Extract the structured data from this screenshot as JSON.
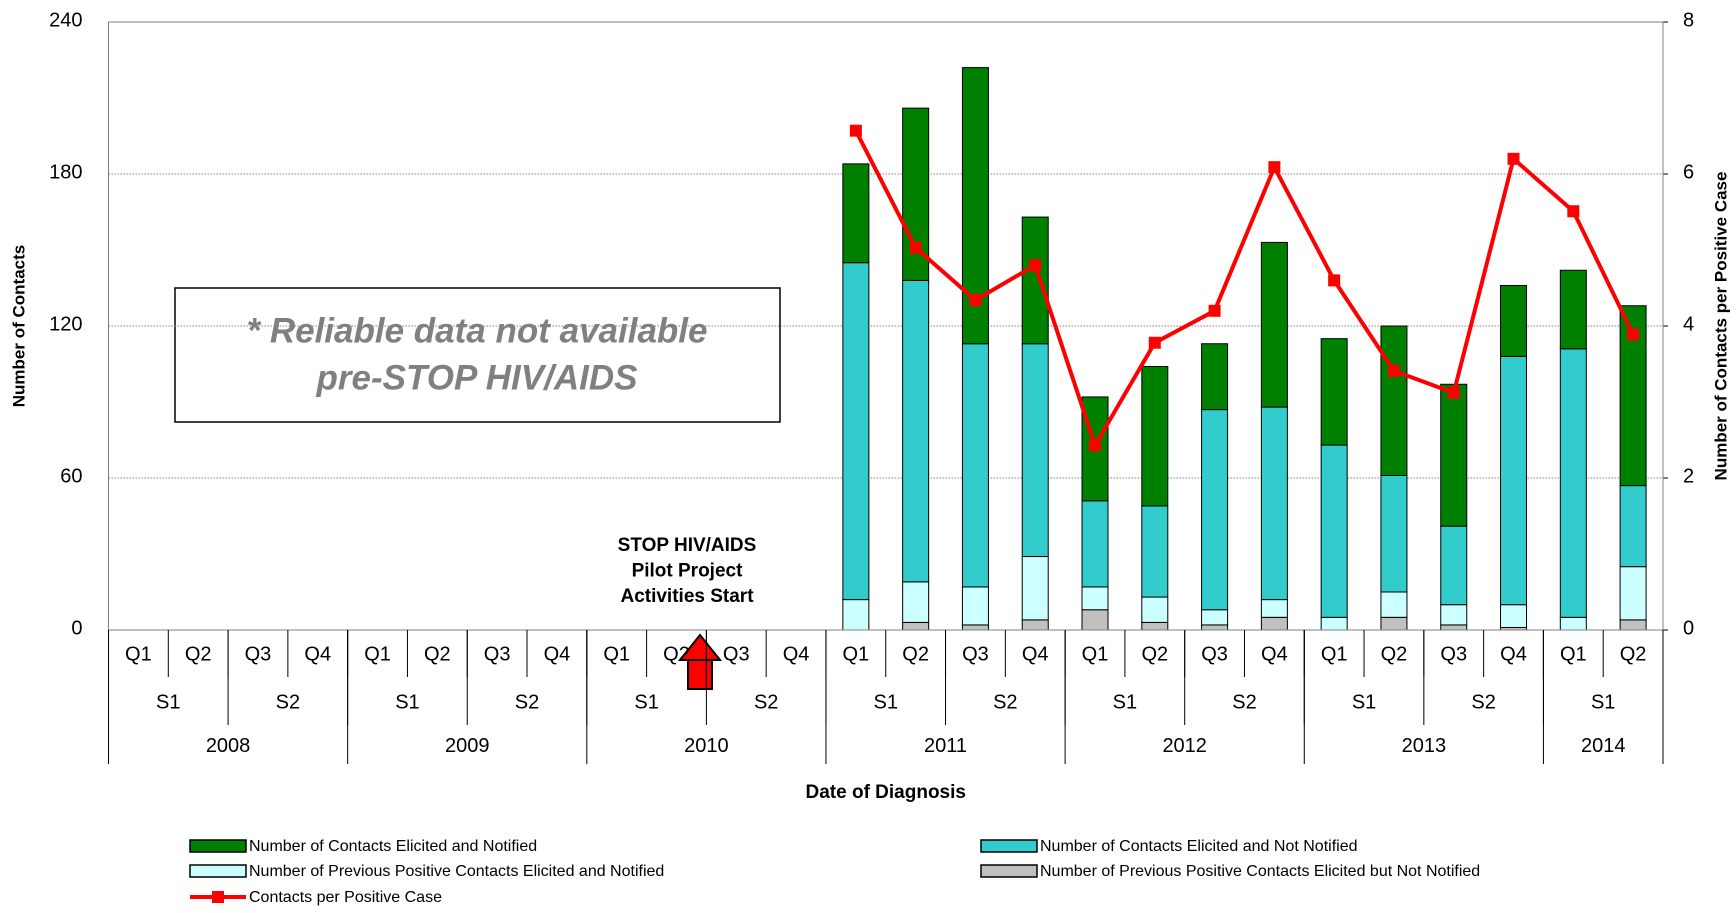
{
  "chart_data": {
    "type": "bar",
    "stacked": true,
    "x_label": "Date of Diagnosis",
    "y_label": "Number of Contacts",
    "y2_label": "Number of Contacts per Positive Case",
    "categories": [
      "Q1",
      "Q2",
      "Q3",
      "Q4",
      "Q1",
      "Q2",
      "Q3",
      "Q4",
      "Q1",
      "Q2",
      "Q3",
      "Q4",
      "Q1",
      "Q2",
      "Q3",
      "Q4",
      "Q1",
      "Q2",
      "Q3",
      "Q4",
      "Q1",
      "Q2",
      "Q3",
      "Q4",
      "Q1",
      "Q2"
    ],
    "category_levels": [
      [
        "S1",
        null,
        "S2",
        null,
        "S1",
        null,
        "S2",
        null,
        "S1",
        null,
        "S2",
        null,
        "S1",
        null,
        "S2",
        null,
        "S1",
        null,
        "S2",
        null,
        "S1",
        null,
        "S2",
        null,
        "S1",
        null
      ],
      [
        "2008",
        null,
        null,
        null,
        "2009",
        null,
        null,
        null,
        "2010",
        null,
        null,
        null,
        "2011",
        null,
        null,
        null,
        "2012",
        null,
        null,
        null,
        "2013",
        null,
        null,
        null,
        "2014",
        null
      ]
    ],
    "ylim": [
      0,
      240
    ],
    "yticks": [
      0,
      60,
      120,
      180,
      240
    ],
    "y2lim": [
      0,
      8
    ],
    "y2ticks": [
      0,
      2,
      4,
      6,
      8
    ],
    "grid": true,
    "series": [
      {
        "name": "Number of Contacts Elicited and Notified",
        "color": "#008000",
        "values": [
          null,
          null,
          null,
          null,
          null,
          null,
          null,
          null,
          null,
          null,
          null,
          null,
          39,
          68,
          109,
          50,
          41,
          55,
          26,
          65,
          42,
          59,
          56,
          28,
          31,
          71
        ]
      },
      {
        "name": "Number of Contacts Elicited and Not Notified",
        "color": "#33cccc",
        "values": [
          null,
          null,
          null,
          null,
          null,
          null,
          null,
          null,
          null,
          null,
          null,
          null,
          133,
          119,
          96,
          84,
          34,
          36,
          79,
          76,
          68,
          46,
          31,
          98,
          106,
          32
        ]
      },
      {
        "name": "Number of Previous Positive Contacts Elicited and Notified",
        "color": "#ccffff",
        "values": [
          null,
          null,
          null,
          null,
          null,
          null,
          null,
          null,
          null,
          null,
          null,
          null,
          12,
          16,
          15,
          25,
          9,
          10,
          6,
          7,
          5,
          10,
          8,
          9,
          5,
          21
        ]
      },
      {
        "name": "Number of Previous Positive Contacts Elicited but Not Notified",
        "color": "#c0c0c0",
        "values": [
          null,
          null,
          null,
          null,
          null,
          null,
          null,
          null,
          null,
          null,
          null,
          null,
          0,
          3,
          2,
          4,
          8,
          3,
          2,
          5,
          0,
          5,
          2,
          1,
          0,
          4
        ]
      },
      {
        "name": "Contacts per Positive Case",
        "color": "#ff0000",
        "type": "line",
        "axis": "y2",
        "values": [
          null,
          null,
          null,
          null,
          null,
          null,
          null,
          null,
          null,
          null,
          null,
          null,
          6.57,
          5.03,
          4.34,
          4.8,
          2.43,
          3.78,
          4.2,
          6.09,
          4.6,
          3.41,
          3.12,
          6.2,
          5.51,
          3.89
        ]
      }
    ],
    "annotations": [
      {
        "lines": [
          "* Reliable data not available",
          "pre-STOP HIV/AIDS"
        ]
      },
      {
        "lines": [
          "STOP HIV/AIDS",
          "Pilot Project",
          "Activities Start"
        ]
      }
    ]
  }
}
